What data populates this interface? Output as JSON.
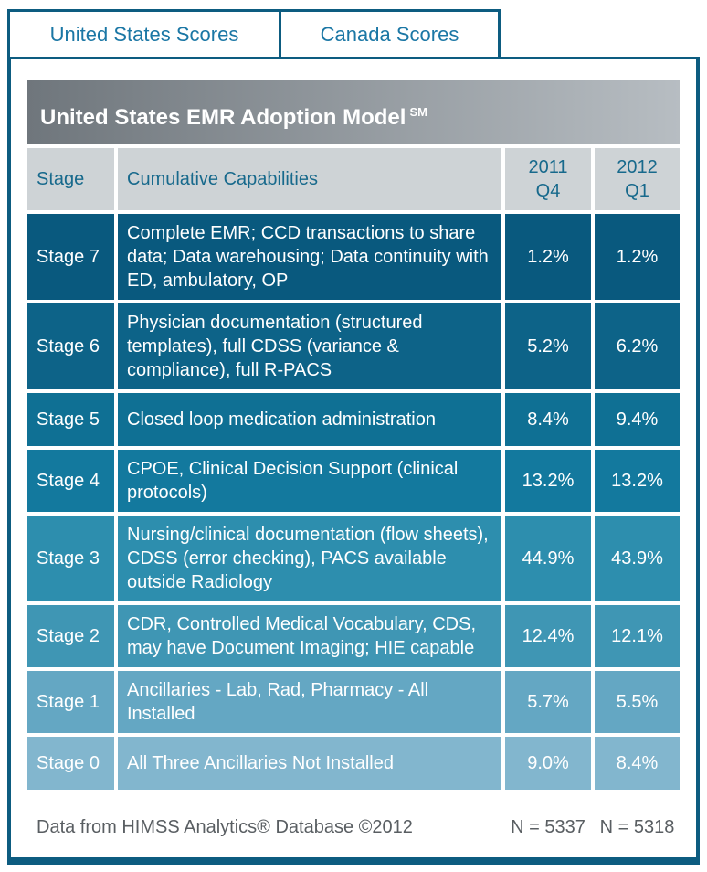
{
  "tabs": [
    {
      "label": "United States Scores",
      "active": true
    },
    {
      "label": "Canada Scores",
      "active": false
    }
  ],
  "title": {
    "text": "United States EMR Adoption Model",
    "superscript": "SM"
  },
  "table": {
    "headers": {
      "stage": "Stage",
      "capabilities": "Cumulative Capabilities",
      "period1": "2011\nQ4",
      "period2": "2012\nQ1"
    },
    "rows": [
      {
        "stage": "Stage 7",
        "capabilities": "Complete EMR; CCD transactions to share data; Data warehousing; Data continuity with ED, ambulatory, OP",
        "y2011q4": "1.2%",
        "y2012q1": "1.2%",
        "color": "#09597e"
      },
      {
        "stage": "Stage 6",
        "capabilities": "Physician documentation (structured templates), full CDSS (variance & compliance), full R-PACS",
        "y2011q4": "5.2%",
        "y2012q1": "6.2%",
        "color": "#0d6388"
      },
      {
        "stage": "Stage 5",
        "capabilities": "Closed loop medication administration",
        "y2011q4": "8.4%",
        "y2012q1": "9.4%",
        "color": "#0f7094"
      },
      {
        "stage": "Stage 4",
        "capabilities": "CPOE, Clinical Decision Support (clinical protocols)",
        "y2011q4": "13.2%",
        "y2012q1": "13.2%",
        "color": "#13799e"
      },
      {
        "stage": "Stage 3",
        "capabilities": "Nursing/clinical documentation (flow sheets), CDSS (error checking), PACS available outside Radiology",
        "y2011q4": "44.9%",
        "y2012q1": "43.9%",
        "color": "#2d8eae"
      },
      {
        "stage": "Stage 2",
        "capabilities": "CDR, Controlled Medical Vocabulary, CDS, may have Document Imaging; HIE capable",
        "y2011q4": "12.4%",
        "y2012q1": "12.1%",
        "color": "#3f96b4"
      },
      {
        "stage": "Stage 1",
        "capabilities": "Ancillaries - Lab, Rad, Pharmacy - All Installed",
        "y2011q4": "5.7%",
        "y2012q1": "5.5%",
        "color": "#64a7c3"
      },
      {
        "stage": "Stage 0",
        "capabilities": "All Three Ancillaries Not Installed",
        "y2011q4": "9.0%",
        "y2012q1": "8.4%",
        "color": "#82b6ce"
      }
    ]
  },
  "footer": {
    "source": "Data from HIMSS Analytics® Database ©2012",
    "n_2011q4": "N = 5337",
    "n_2012q1": "N = 5318"
  },
  "colors": {
    "border_teal": "#0d5c80",
    "tab_text": "#1b77a5",
    "header_bg": "#ced3d6",
    "header_text": "#17698c",
    "title_gradient_left": "#6f767c",
    "title_gradient_right": "#b7bdc2",
    "footer_text": "#595e62"
  }
}
